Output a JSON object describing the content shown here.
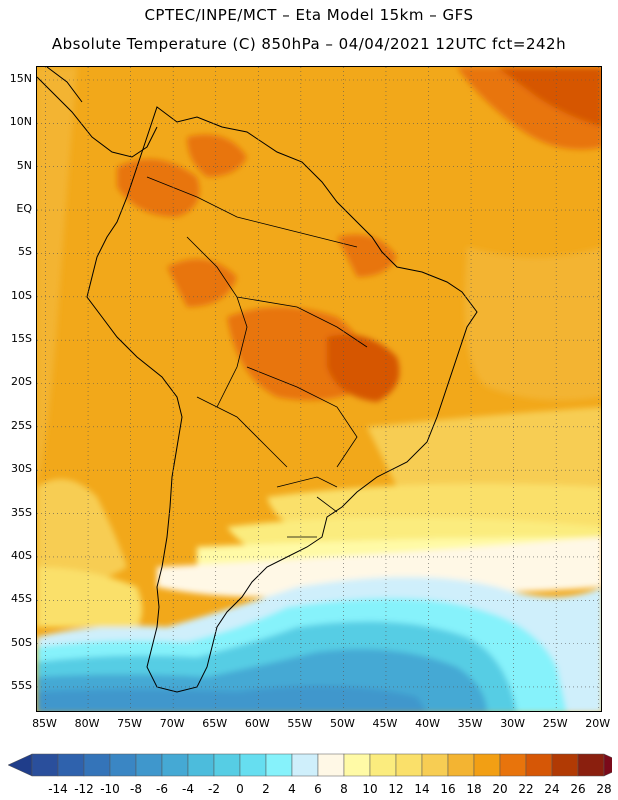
{
  "header": {
    "line1": "CPTEC/INPE/MCT –  Eta Model 15km – GFS",
    "line2": "Absolute Temperature (C) 850hPa – 04/04/2021 12UTC fct=242h"
  },
  "map": {
    "lat_labels": [
      "15N",
      "10N",
      "5N",
      "EQ",
      "5S",
      "10S",
      "15S",
      "20S",
      "25S",
      "30S",
      "35S",
      "40S",
      "45S",
      "50S",
      "55S"
    ],
    "lon_labels": [
      "85W",
      "80W",
      "75W",
      "70W",
      "65W",
      "60W",
      "55W",
      "50W",
      "45W",
      "40W",
      "35W",
      "30W",
      "25W",
      "20W"
    ],
    "extent": {
      "lon_min": -86,
      "lon_max": -19.5,
      "lat_min": -58,
      "lat_max": 16.5
    },
    "grid_lines": "dotted"
  },
  "legend": {
    "labels": [
      "-14",
      "-12",
      "-10",
      "-8",
      "-6",
      "-4",
      "-2",
      "0",
      "2",
      "4",
      "6",
      "8",
      "10",
      "12",
      "14",
      "16",
      "18",
      "20",
      "22",
      "24",
      "26",
      "28"
    ],
    "under_color": "#1f3d8a",
    "over_color": "#7a0a1a",
    "colors": [
      "#2a4f9c",
      "#2f62ad",
      "#3474b9",
      "#3a86c4",
      "#3f97cc",
      "#45a9d4",
      "#4cbcdc",
      "#56cde4",
      "#66def0",
      "#86f2fb",
      "#cfeffb",
      "#fff8e6",
      "#fffaa6",
      "#fbec7e",
      "#fae06a",
      "#f7cd53",
      "#f3b432",
      "#f29f14",
      "#e8740c",
      "#d65706",
      "#b13a04",
      "#8a1f0e",
      "#7a0a1a"
    ]
  }
}
